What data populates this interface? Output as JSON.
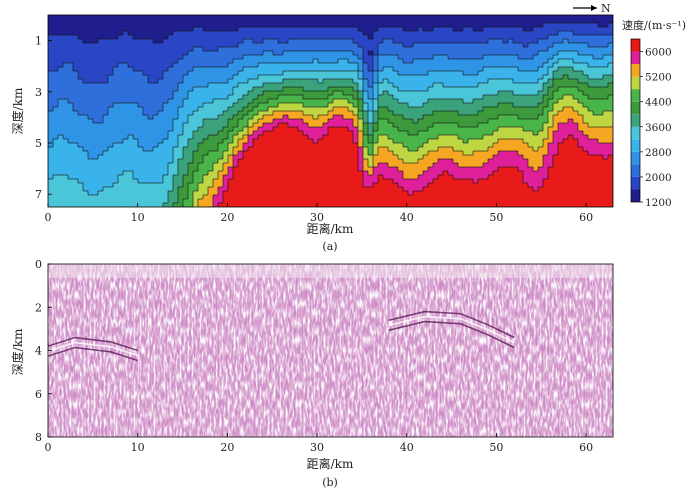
{
  "figure": {
    "north_indicator": "N",
    "colorbar_title": "速度/(m·s⁻¹)"
  },
  "chart_data": [
    {
      "type": "heatmap",
      "panel_label": "(a)",
      "xlabel": "距离/km",
      "ylabel": "深度/km",
      "xlim": [
        0,
        63
      ],
      "ylim": [
        7.5,
        0
      ],
      "x_ticks": [
        0,
        10,
        20,
        30,
        40,
        50,
        60
      ],
      "y_ticks": [
        1,
        3,
        5,
        7
      ],
      "colorbar": {
        "label": "速度/(m·s⁻¹)",
        "range": [
          1200,
          6400
        ],
        "ticks": [
          1200,
          2000,
          2800,
          3600,
          4400,
          5200,
          6000
        ],
        "levels": [
          1200,
          1600,
          2000,
          2400,
          2800,
          3200,
          3600,
          4000,
          4400,
          4800,
          5200,
          5600,
          6000,
          6400
        ],
        "colors": [
          "#1f1e8c",
          "#2a46c4",
          "#2f6fdc",
          "#2f93e6",
          "#39b3ea",
          "#4ac6d8",
          "#3aa37c",
          "#3c9a3c",
          "#49b449",
          "#bdd642",
          "#f5a623",
          "#e0209a",
          "#e81a1a",
          "#e81a1a"
        ]
      },
      "anomalies": [
        {
          "x": 25.0,
          "depth": 5.6,
          "value": 6000
        },
        {
          "x": 27.5,
          "depth": 4.8,
          "value": 6000
        },
        {
          "x": 32.0,
          "depth": 5.0,
          "value": 6000
        },
        {
          "x": 33.5,
          "depth": 4.3,
          "value": 5600
        },
        {
          "x": 22.0,
          "depth": 6.8,
          "value": 5800
        },
        {
          "x": 52.5,
          "depth": 5.4,
          "value": 5200
        },
        {
          "x": 57.5,
          "depth": 4.8,
          "value": 5200
        },
        {
          "x": 57.0,
          "depth": 3.0,
          "value": 5000
        },
        {
          "x": 44.0,
          "depth": 6.2,
          "value": 5000
        }
      ],
      "low_velocity_zones": [
        {
          "x": 35.8,
          "depth": 3.5,
          "value": 3400
        }
      ]
    },
    {
      "type": "heatmap",
      "panel_label": "(b)",
      "xlabel": "距离/km",
      "ylabel": "深度/km",
      "xlim": [
        0,
        63
      ],
      "ylim": [
        8,
        0
      ],
      "x_ticks": [
        0,
        10,
        20,
        30,
        40,
        50,
        60
      ],
      "y_ticks": [
        0,
        2,
        4,
        6,
        8
      ],
      "reflectors": [
        {
          "points": [
            [
              38,
              2.6
            ],
            [
              42,
              2.2
            ],
            [
              46,
              2.3
            ],
            [
              49,
              2.8
            ],
            [
              52,
              3.4
            ]
          ]
        },
        {
          "points": [
            [
              0,
              3.8
            ],
            [
              3,
              3.4
            ],
            [
              7,
              3.6
            ],
            [
              10,
              4.0
            ]
          ]
        }
      ]
    }
  ]
}
